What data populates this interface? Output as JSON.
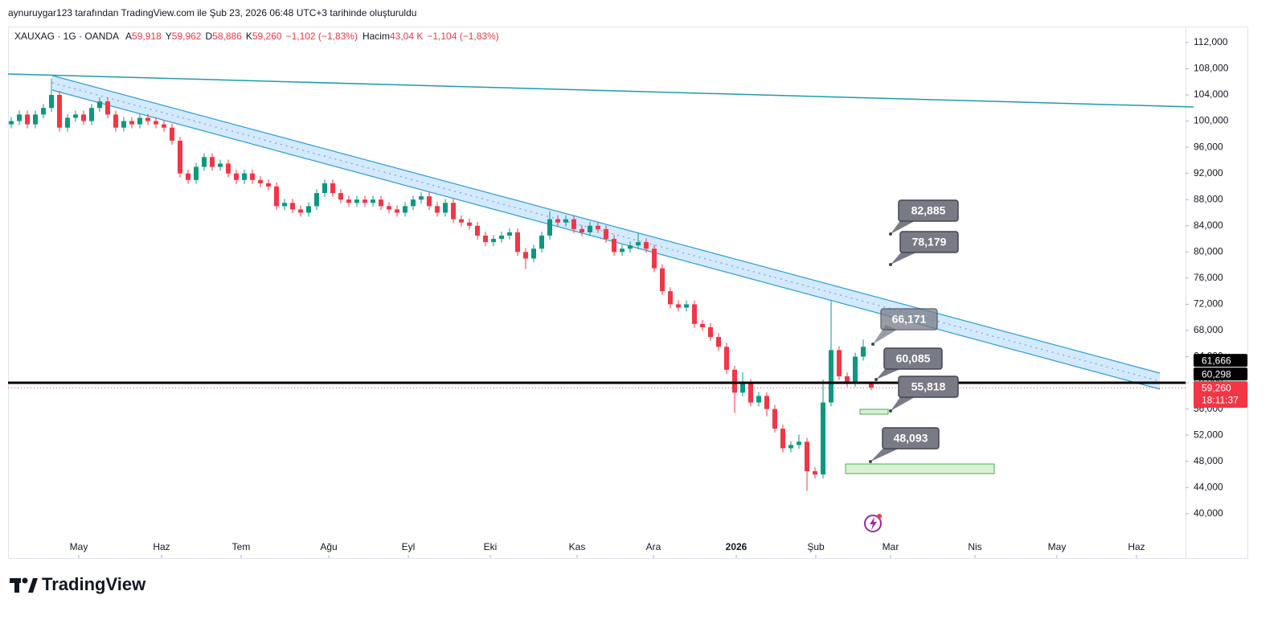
{
  "caption": "aynuruygar123 tarafından TradingView.com ile Şub 23, 2026 06:48 UTC+3 tarihinde oluşturuldu",
  "brand": "TradingView",
  "chart_data": {
    "type": "candlestick",
    "legend": {
      "symbol": "XAUXAG · 1G · OANDA",
      "items": [
        {
          "key": "A",
          "value": "59,918"
        },
        {
          "key": "Y",
          "value": "59,962"
        },
        {
          "key": "D",
          "value": "58,886"
        },
        {
          "key": "K",
          "value": "59,260"
        }
      ],
      "change": "−1,102 (−1,83%)",
      "volume_key": "Hacim",
      "volume": "43,04 K",
      "volume_change": "−1,104 (−1,83%)"
    },
    "up_color": "#089981",
    "down_color": "#f23645",
    "open": [
      99.5,
      100,
      101,
      99.5,
      101,
      102,
      104,
      99,
      100.5,
      101,
      100,
      102,
      103,
      101,
      99,
      100,
      99.5,
      100.5,
      100,
      99.5,
      99,
      97,
      92,
      91,
      93,
      94.5,
      93,
      93.5,
      92,
      91,
      92,
      91,
      90.5,
      90,
      87,
      87.5,
      86.5,
      86,
      87,
      89,
      90.5,
      89,
      88,
      87.5,
      88,
      87.5,
      88,
      87,
      86.5,
      86,
      87,
      88,
      88.5,
      87,
      86,
      87.5,
      85,
      84.5,
      84,
      82.5,
      81.5,
      82,
      82.5,
      83,
      80,
      79,
      80.5,
      82.5,
      85,
      84.5,
      85,
      83.5,
      83,
      84,
      83.5,
      82,
      80,
      80.5,
      81,
      81.5,
      80.5,
      77.5,
      74,
      72,
      71.5,
      72,
      69,
      68.5,
      67,
      65.5,
      62,
      58.5,
      60,
      57,
      58,
      56,
      53,
      50,
      50.5,
      51,
      46.5,
      46,
      57,
      65,
      61,
      60,
      64,
      59.918
    ],
    "high": [
      100.6,
      101.6,
      101.6,
      101.6,
      102.6,
      106.5,
      104.6,
      101.1,
      101.6,
      101.6,
      102.6,
      103.6,
      103.6,
      101.6,
      100.6,
      100.6,
      101.1,
      101.1,
      100.6,
      100.1,
      99.6,
      97.6,
      92.6,
      93.6,
      95.1,
      95.1,
      94.1,
      94.1,
      92.6,
      92.6,
      92.6,
      91.6,
      91.1,
      90.6,
      88.1,
      88.1,
      87.1,
      87.6,
      89.6,
      91.1,
      91.1,
      89.6,
      88.6,
      88.6,
      88.6,
      88.6,
      88.6,
      87.6,
      87.1,
      87.6,
      88.6,
      89.1,
      89.1,
      87.6,
      88.1,
      88.1,
      85.6,
      85.1,
      84.6,
      83.1,
      82.6,
      83.1,
      83.6,
      83.6,
      80.6,
      81.1,
      83.1,
      86.2,
      85.6,
      85.6,
      85.6,
      84.1,
      84.6,
      84.6,
      84.1,
      82.6,
      81.1,
      81.6,
      82.9,
      82.1,
      81.1,
      78.1,
      74.6,
      72.6,
      72.6,
      72.6,
      69.6,
      69.1,
      67.6,
      66.1,
      62.6,
      61.6,
      60.6,
      58.6,
      58.6,
      56.6,
      53.6,
      51.1,
      52.1,
      51.6,
      47.1,
      60.5,
      72.5,
      65.6,
      61.6,
      64.6,
      66.6,
      59.962
    ],
    "low": [
      98.9,
      99.4,
      98.9,
      98.9,
      100.4,
      101.4,
      98.4,
      98.4,
      99.9,
      99.4,
      99.4,
      101.4,
      100.4,
      98.4,
      98.4,
      98.9,
      98.9,
      99.4,
      98.9,
      98.4,
      96.4,
      91.4,
      90.4,
      90.4,
      92.4,
      92.4,
      92.4,
      91.4,
      90.4,
      90.4,
      90.4,
      89.9,
      89.4,
      86.4,
      86.4,
      85.9,
      85.4,
      85.4,
      86.4,
      88.4,
      88.4,
      87.4,
      86.9,
      86.9,
      86.9,
      86.9,
      86.4,
      85.9,
      85.4,
      85.4,
      86.4,
      87.4,
      86.4,
      85.4,
      85.4,
      84.4,
      83.9,
      83.4,
      81.9,
      80.9,
      80.9,
      81.4,
      81.9,
      79.4,
      77.4,
      78.4,
      79.9,
      81.9,
      83.9,
      83.9,
      82.9,
      82.4,
      82.4,
      82.9,
      81.4,
      79.4,
      79.4,
      79.9,
      80.4,
      79.9,
      76.9,
      73.4,
      71.4,
      70.9,
      70.9,
      68.4,
      67.9,
      66.4,
      64.9,
      61.4,
      55.4,
      57.9,
      56.4,
      56.4,
      54.9,
      52.4,
      49.4,
      49.4,
      49.9,
      43.5,
      45.4,
      45.4,
      56.4,
      60.4,
      59.4,
      59.4,
      63.4,
      58.886
    ],
    "close": [
      100,
      101,
      99.5,
      101,
      102,
      104,
      99,
      100.5,
      101,
      100,
      102,
      103,
      101,
      99,
      100,
      99.5,
      100.5,
      100,
      99.5,
      99,
      97,
      92,
      91,
      93,
      94.5,
      93,
      93.5,
      92,
      91,
      92,
      91,
      90.5,
      90,
      87,
      87.5,
      86.5,
      86,
      87,
      89,
      90.5,
      89,
      88,
      87.5,
      88,
      87.5,
      88,
      87,
      86.5,
      86,
      87,
      88,
      88.5,
      87,
      86,
      87.5,
      85,
      84.5,
      84,
      82.5,
      81.5,
      82,
      82.5,
      83,
      80,
      79,
      80.5,
      82.5,
      85,
      84.5,
      85,
      83.5,
      83,
      84,
      83.5,
      82,
      80,
      80.5,
      81,
      81.5,
      80.5,
      77.5,
      74,
      72,
      71.5,
      72,
      69,
      68.5,
      67,
      65.5,
      62,
      58.5,
      60,
      57,
      58,
      56,
      53,
      50,
      50.5,
      51,
      46.5,
      46,
      57,
      65,
      61,
      60,
      64,
      65.5,
      59.26
    ],
    "xlim": [
      -0.4,
      146.1
    ],
    "xticks": [
      {
        "value": 8.4,
        "label": "May"
      },
      {
        "value": 18.7,
        "label": "Haz"
      },
      {
        "value": 28.6,
        "label": "Tem"
      },
      {
        "value": 39.5,
        "label": "Ağu"
      },
      {
        "value": 49.4,
        "label": "Eyl"
      },
      {
        "value": 59.6,
        "label": "Eki"
      },
      {
        "value": 70.4,
        "label": "Kas"
      },
      {
        "value": 79.9,
        "label": "Ara"
      },
      {
        "value": 90.2,
        "label": "2026"
      },
      {
        "value": 100.1,
        "label": "Şub"
      },
      {
        "value": 109.4,
        "label": "Mar"
      },
      {
        "value": 119.9,
        "label": "Nis"
      },
      {
        "value": 130.1,
        "label": "May"
      },
      {
        "value": 140,
        "label": "Haz"
      }
    ],
    "ylim": [
      33.1,
      114.2
    ],
    "yticks": [
      {
        "value": 40,
        "label": "40,000"
      },
      {
        "value": 44,
        "label": "44,000"
      },
      {
        "value": 48,
        "label": "48,000"
      },
      {
        "value": 52,
        "label": "52,000"
      },
      {
        "value": 56,
        "label": "56,000"
      },
      {
        "value": 60,
        "label": "60,000"
      },
      {
        "value": 64,
        "label": "64,000"
      },
      {
        "value": 68,
        "label": "68,000"
      },
      {
        "value": 72,
        "label": "72,000"
      },
      {
        "value": 76,
        "label": "76,000"
      },
      {
        "value": 80,
        "label": "80,000"
      },
      {
        "value": 84,
        "label": "84,000"
      },
      {
        "value": 88,
        "label": "88,000"
      },
      {
        "value": 92,
        "label": "92,000"
      },
      {
        "value": 96,
        "label": "96,000"
      },
      {
        "value": 100,
        "label": "100,000"
      },
      {
        "value": 104,
        "label": "104,000"
      },
      {
        "value": 108,
        "label": "108,000"
      },
      {
        "value": 112,
        "label": "112,000"
      }
    ],
    "price_labels": [
      {
        "value": 61.666,
        "label": "61,666"
      },
      {
        "value": 60.298,
        "label": "60,298"
      }
    ],
    "last_price": {
      "value": 59.26,
      "label": "59,260",
      "countdown": "18:11:37"
    },
    "callouts": [
      "82,885",
      "78,179",
      "66,171",
      "60,085",
      "55,818",
      "48,093"
    ]
  }
}
